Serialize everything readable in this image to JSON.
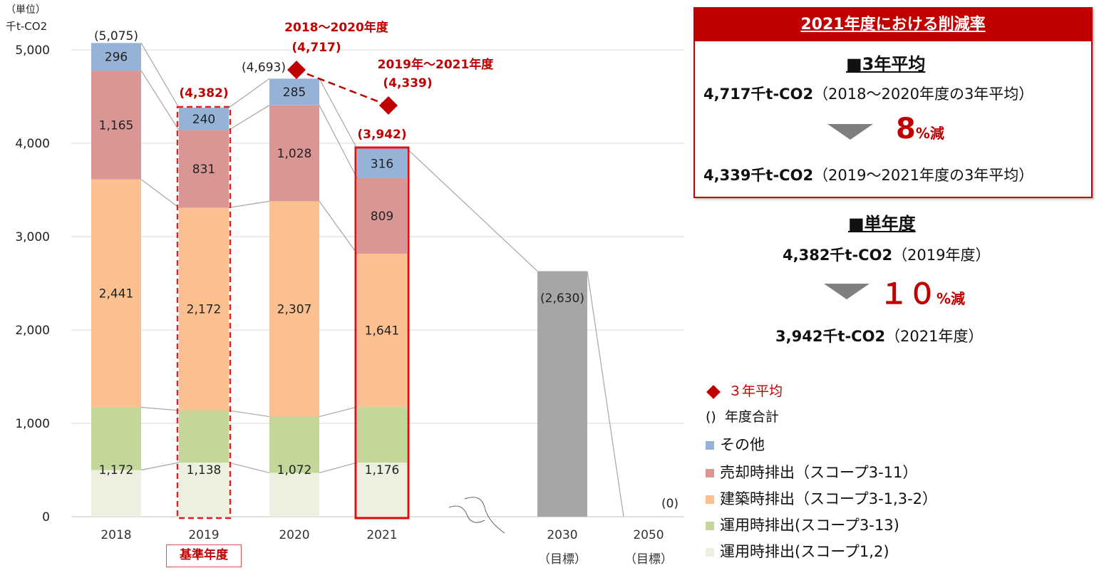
{
  "chart_data": {
    "type": "bar",
    "unit_label": "（単位）",
    "unit_sub": "千t-CO2",
    "categories": [
      "2018",
      "2019",
      "2020",
      "2021",
      "2030",
      "2050"
    ],
    "category_sublabels": [
      "",
      "",
      "",
      "",
      "（目標）",
      "（目標）"
    ],
    "ylim": [
      0,
      5000
    ],
    "yticks": [
      "0",
      "1,000",
      "2,000",
      "3,000",
      "4,000",
      "5,000"
    ],
    "yticks_values": [
      0,
      1000,
      2000,
      3000,
      4000,
      5000
    ],
    "series": [
      {
        "name": "運用時排出(スコープ1,2)",
        "color": "#ebf1de",
        "values": [
          500,
          580,
          470,
          580,
          null,
          null
        ]
      },
      {
        "name": "運用時排出(スコープ3-13)",
        "color": "#c4d79b",
        "values": [
          672,
          558,
          602,
          596,
          null,
          null
        ]
      },
      {
        "name": "建築時排出（スコープ3-1,3-2）",
        "color": "#fac090",
        "values": [
          2441,
          2172,
          2307,
          1641,
          null,
          null
        ]
      },
      {
        "name": "売却時排出（スコープ3-11）",
        "color": "#d99694",
        "values": [
          1165,
          831,
          1028,
          809,
          null,
          null
        ]
      },
      {
        "name": "その他",
        "color": "#95b3d7",
        "values": [
          296,
          240,
          285,
          316,
          null,
          null
        ]
      }
    ],
    "green_labels": [
      "1,172",
      "1,138",
      "1,072",
      "1,176"
    ],
    "segment_labels": {
      "orange": [
        "2,441",
        "2,172",
        "2,307",
        "1,641"
      ],
      "red": [
        "1,165",
        "831",
        "1,028",
        "809"
      ],
      "blue": [
        "296",
        "240",
        "285",
        "316"
      ]
    },
    "targets": {
      "2030": 2630,
      "2050": 0,
      "color": "#a6a6a6"
    },
    "totals": [
      "(5,075)",
      "(4,382)",
      "(4,693)",
      "(3,942)",
      "(2,630)",
      "(0)"
    ],
    "three_year_avg": [
      {
        "label": "2018～2020年度",
        "value_text": "(4,717)",
        "value": 4717
      },
      {
        "label": "2019年～2021年度",
        "value_text": "(4,339)",
        "value": 4339
      }
    ],
    "base_year_label": "基準年度",
    "accent_color": "#c00000"
  },
  "reduction_box": {
    "title": "2021年度における削減率",
    "avg_heading": "■3年平均",
    "avg_from": "4,717千t-CO2",
    "avg_from_note": "（2018～2020年度の3年平均）",
    "avg_rate": "8",
    "avg_rate_unit": "%減",
    "avg_to": "4,339千t-CO2",
    "avg_to_note": "（2019～2021年度の3年平均）"
  },
  "single_year": {
    "heading": "■単年度",
    "from": "4,382千t-CO2",
    "from_note": "（2019年度）",
    "rate": "１０",
    "rate_unit": "%減",
    "to": "3,942千t-CO2",
    "to_note": "（2021年度）"
  },
  "legend": {
    "avg": "３年平均",
    "total_symbol": "()",
    "total": "年度合計",
    "items": [
      {
        "label": "その他",
        "color": "#95b3d7"
      },
      {
        "label": "売却時排出（スコープ3-11）",
        "color": "#d99694"
      },
      {
        "label": "建築時排出（スコープ3-1,3-2）",
        "color": "#fac090"
      },
      {
        "label": "運用時排出(スコープ3-13)",
        "color": "#c4d79b"
      },
      {
        "label": "運用時排出(スコープ1,2)",
        "color": "#ebf1de"
      }
    ]
  }
}
